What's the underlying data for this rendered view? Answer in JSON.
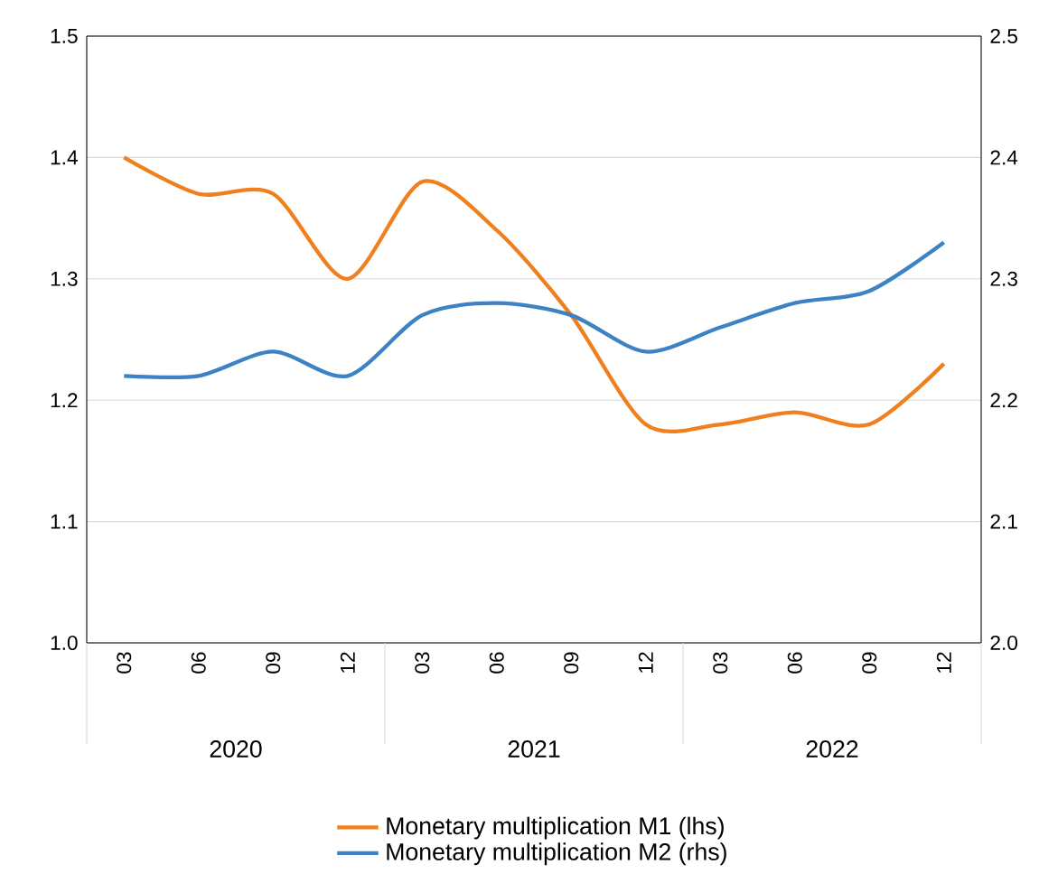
{
  "chart_data": {
    "type": "line",
    "categories": [
      "03",
      "06",
      "09",
      "12",
      "03",
      "06",
      "09",
      "12",
      "03",
      "06",
      "09",
      "12"
    ],
    "annotations": [
      "2020",
      "2021",
      "2022"
    ],
    "series": [
      {
        "name": "Monetary multiplication M1 (lhs)",
        "color": "#f07f1e",
        "values": [
          1.4,
          1.37,
          1.37,
          1.3,
          1.38,
          1.34,
          1.27,
          1.18,
          1.18,
          1.19,
          1.18,
          1.23
        ]
      },
      {
        "name": "Monetary multiplication M2 (rhs)",
        "color": "#3c82c4",
        "axis": "y2",
        "values": [
          2.22,
          2.22,
          2.24,
          2.22,
          2.27,
          2.28,
          2.27,
          2.24,
          2.26,
          2.28,
          2.29,
          2.33
        ]
      }
    ],
    "ylim": [
      1.0,
      1.5
    ],
    "yticks": [
      {
        "value": 1.0,
        "label": "1.0"
      },
      1.1,
      1.2,
      1.3,
      1.4,
      1.5
    ],
    "y2lim": [
      2.0,
      2.5
    ],
    "y2ticks": [
      {
        "value": 2.0,
        "label": "2.0"
      },
      2.1,
      2.2,
      2.3,
      2.4,
      2.5
    ],
    "grid": "y",
    "legend": "bottom",
    "marker": "none",
    "line_style": "solid"
  }
}
